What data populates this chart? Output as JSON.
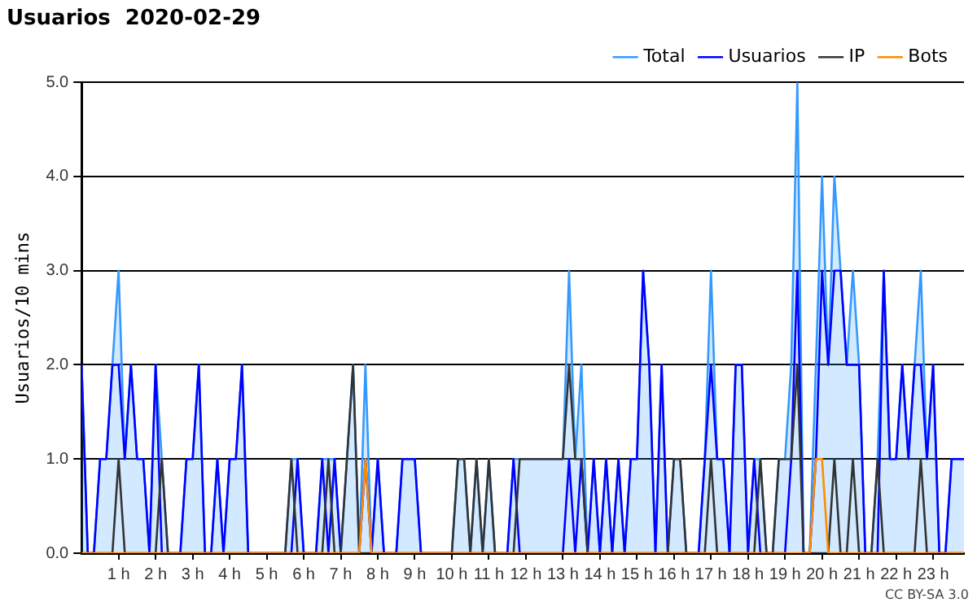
{
  "chart_data": {
    "type": "line",
    "title": "Usuarios  2020-02-29",
    "ylabel": "Usuarios/10 mins",
    "x": [
      0,
      0.167,
      0.333,
      0.5,
      0.667,
      0.833,
      1,
      1.167,
      1.333,
      1.5,
      1.667,
      1.833,
      2,
      2.167,
      2.333,
      2.5,
      2.667,
      2.833,
      3,
      3.167,
      3.333,
      3.5,
      3.667,
      3.833,
      4,
      4.167,
      4.333,
      4.5,
      4.667,
      4.833,
      5,
      5.167,
      5.333,
      5.5,
      5.667,
      5.833,
      6,
      6.167,
      6.333,
      6.5,
      6.667,
      6.833,
      7,
      7.167,
      7.333,
      7.5,
      7.667,
      7.833,
      8,
      8.167,
      8.333,
      8.5,
      8.667,
      8.833,
      9,
      9.167,
      9.333,
      9.5,
      9.667,
      9.833,
      10,
      10.167,
      10.333,
      10.5,
      10.667,
      10.833,
      11,
      11.167,
      11.333,
      11.5,
      11.667,
      11.833,
      12,
      12.167,
      12.333,
      12.5,
      12.667,
      12.833,
      13,
      13.167,
      13.333,
      13.5,
      13.667,
      13.833,
      14,
      14.167,
      14.333,
      14.5,
      14.667,
      14.833,
      15,
      15.167,
      15.333,
      15.5,
      15.667,
      15.833,
      16,
      16.167,
      16.333,
      16.5,
      16.667,
      16.833,
      17,
      17.167,
      17.333,
      17.5,
      17.667,
      17.833,
      18,
      18.167,
      18.333,
      18.5,
      18.667,
      18.833,
      19,
      19.167,
      19.333,
      19.5,
      19.667,
      19.833,
      20,
      20.167,
      20.333,
      20.5,
      20.667,
      20.833,
      21,
      21.167,
      21.333,
      21.5,
      21.667,
      21.833,
      22,
      22.167,
      22.333,
      22.5,
      22.667,
      22.833,
      23,
      23.167,
      23.333,
      23.5,
      23.667,
      23.833
    ],
    "series": [
      {
        "name": "Total",
        "type": "area",
        "color": "#3399ff",
        "values": [
          2,
          0,
          0,
          1,
          1,
          2,
          3,
          1,
          2,
          1,
          1,
          0,
          2,
          1,
          0,
          0,
          0,
          1,
          1,
          2,
          0,
          0,
          1,
          0,
          1,
          1,
          2,
          0,
          0,
          0,
          0,
          0,
          0,
          0,
          1,
          1,
          0,
          0,
          0,
          1,
          1,
          1,
          0,
          1,
          2,
          0,
          2,
          0,
          1,
          0,
          0,
          0,
          1,
          1,
          1,
          0,
          0,
          0,
          0,
          0,
          0,
          1,
          1,
          0,
          1,
          0,
          1,
          0,
          0,
          0,
          1,
          1,
          1,
          1,
          1,
          1,
          1,
          1,
          1,
          3,
          1,
          2,
          0,
          1,
          0,
          1,
          0,
          1,
          0,
          1,
          1,
          3,
          2,
          0,
          2,
          0,
          1,
          1,
          0,
          0,
          0,
          1,
          3,
          1,
          1,
          0,
          2,
          2,
          0,
          1,
          1,
          0,
          0,
          1,
          1,
          2,
          5,
          0,
          0,
          2,
          4,
          2,
          4,
          3,
          2,
          3,
          2,
          0,
          0,
          1,
          3,
          1,
          1,
          2,
          1,
          2,
          3,
          1,
          2,
          0,
          0,
          1,
          1,
          1
        ]
      },
      {
        "name": "Usuarios",
        "type": "line",
        "color": "#0000ff",
        "values": [
          2,
          0,
          0,
          1,
          1,
          2,
          2,
          1,
          2,
          1,
          1,
          0,
          2,
          0,
          0,
          0,
          0,
          1,
          1,
          2,
          0,
          0,
          1,
          0,
          1,
          1,
          2,
          0,
          0,
          0,
          0,
          0,
          0,
          0,
          0,
          1,
          0,
          0,
          0,
          1,
          0,
          1,
          0,
          0,
          0,
          0,
          1,
          0,
          1,
          0,
          0,
          0,
          1,
          1,
          1,
          0,
          0,
          0,
          0,
          0,
          0,
          0,
          0,
          0,
          0,
          0,
          0,
          0,
          0,
          0,
          1,
          0,
          0,
          0,
          0,
          0,
          0,
          0,
          0,
          1,
          0,
          1,
          0,
          1,
          0,
          1,
          0,
          1,
          0,
          1,
          1,
          3,
          2,
          0,
          2,
          0,
          0,
          0,
          0,
          0,
          0,
          1,
          2,
          1,
          1,
          0,
          2,
          2,
          0,
          1,
          0,
          0,
          0,
          0,
          0,
          1,
          3,
          0,
          0,
          1,
          3,
          2,
          3,
          3,
          2,
          2,
          2,
          0,
          0,
          0,
          3,
          1,
          1,
          2,
          1,
          2,
          2,
          1,
          2,
          0,
          0,
          1,
          1,
          1
        ]
      },
      {
        "name": "IP",
        "type": "line",
        "color": "#333333",
        "values": [
          0,
          0,
          0,
          0,
          0,
          0,
          1,
          0,
          0,
          0,
          0,
          0,
          0,
          1,
          0,
          0,
          0,
          0,
          0,
          0,
          0,
          0,
          0,
          0,
          0,
          0,
          0,
          0,
          0,
          0,
          0,
          0,
          0,
          0,
          1,
          0,
          0,
          0,
          0,
          0,
          1,
          0,
          0,
          1,
          2,
          0,
          0,
          0,
          0,
          0,
          0,
          0,
          0,
          0,
          0,
          0,
          0,
          0,
          0,
          0,
          0,
          1,
          1,
          0,
          1,
          0,
          1,
          0,
          0,
          0,
          0,
          1,
          1,
          1,
          1,
          1,
          1,
          1,
          1,
          2,
          1,
          1,
          0,
          0,
          0,
          0,
          0,
          0,
          0,
          0,
          0,
          0,
          0,
          0,
          0,
          0,
          1,
          1,
          0,
          0,
          0,
          0,
          1,
          0,
          0,
          0,
          0,
          0,
          0,
          0,
          1,
          0,
          0,
          1,
          1,
          1,
          2,
          0,
          0,
          0,
          0,
          0,
          1,
          0,
          0,
          1,
          0,
          0,
          0,
          1,
          0,
          0,
          0,
          0,
          0,
          0,
          1,
          0,
          0,
          0,
          0,
          0,
          0,
          0
        ]
      },
      {
        "name": "Bots",
        "type": "line",
        "color": "#ff8c00",
        "values": [
          0,
          0,
          0,
          0,
          0,
          0,
          0,
          0,
          0,
          0,
          0,
          0,
          0,
          0,
          0,
          0,
          0,
          0,
          0,
          0,
          0,
          0,
          0,
          0,
          0,
          0,
          0,
          0,
          0,
          0,
          0,
          0,
          0,
          0,
          0,
          0,
          0,
          0,
          0,
          0,
          0,
          0,
          0,
          0,
          0,
          0,
          1,
          0,
          0,
          0,
          0,
          0,
          0,
          0,
          0,
          0,
          0,
          0,
          0,
          0,
          0,
          0,
          0,
          0,
          0,
          0,
          0,
          0,
          0,
          0,
          0,
          0,
          0,
          0,
          0,
          0,
          0,
          0,
          0,
          0,
          0,
          0,
          0,
          0,
          0,
          0,
          0,
          0,
          0,
          0,
          0,
          0,
          0,
          0,
          0,
          0,
          0,
          0,
          0,
          0,
          0,
          0,
          0,
          0,
          0,
          0,
          0,
          0,
          0,
          0,
          0,
          0,
          0,
          0,
          0,
          0,
          0,
          0,
          0,
          1,
          1,
          0,
          0,
          0,
          0,
          0,
          0,
          0,
          0,
          0,
          0,
          0,
          0,
          0,
          0,
          0,
          0,
          0,
          0,
          0,
          0,
          0,
          0,
          0
        ]
      }
    ],
    "xlim": [
      0,
      23.833
    ],
    "xticks": [
      {
        "value": 1,
        "label": "1 h"
      },
      {
        "value": 2,
        "label": "2 h"
      },
      {
        "value": 3,
        "label": "3 h"
      },
      {
        "value": 4,
        "label": "4 h"
      },
      {
        "value": 5,
        "label": "5 h"
      },
      {
        "value": 6,
        "label": "6 h"
      },
      {
        "value": 7,
        "label": "7 h"
      },
      {
        "value": 8,
        "label": "8 h"
      },
      {
        "value": 9,
        "label": "9 h"
      },
      {
        "value": 10,
        "label": "10 h"
      },
      {
        "value": 11,
        "label": "11 h"
      },
      {
        "value": 12,
        "label": "12 h"
      },
      {
        "value": 13,
        "label": "13 h"
      },
      {
        "value": 14,
        "label": "14 h"
      },
      {
        "value": 15,
        "label": "15 h"
      },
      {
        "value": 16,
        "label": "16 h"
      },
      {
        "value": 17,
        "label": "17 h"
      },
      {
        "value": 18,
        "label": "18 h"
      },
      {
        "value": 19,
        "label": "19 h"
      },
      {
        "value": 20,
        "label": "20 h"
      },
      {
        "value": 21,
        "label": "21 h"
      },
      {
        "value": 22,
        "label": "22 h"
      },
      {
        "value": 23,
        "label": "23 h"
      }
    ],
    "ylim": [
      0,
      5
    ],
    "yticks": [
      {
        "value": 0,
        "label": "0.0"
      },
      {
        "value": 1,
        "label": "1.0"
      },
      {
        "value": 2,
        "label": "2.0"
      },
      {
        "value": 3,
        "label": "3.0"
      },
      {
        "value": 4,
        "label": "4.0"
      },
      {
        "value": 5,
        "label": "5.0"
      }
    ],
    "grid": "y",
    "legend": "top right",
    "marker": "none",
    "line_style": "solid",
    "annotations": [
      "CC BY-SA 3.0"
    ]
  }
}
